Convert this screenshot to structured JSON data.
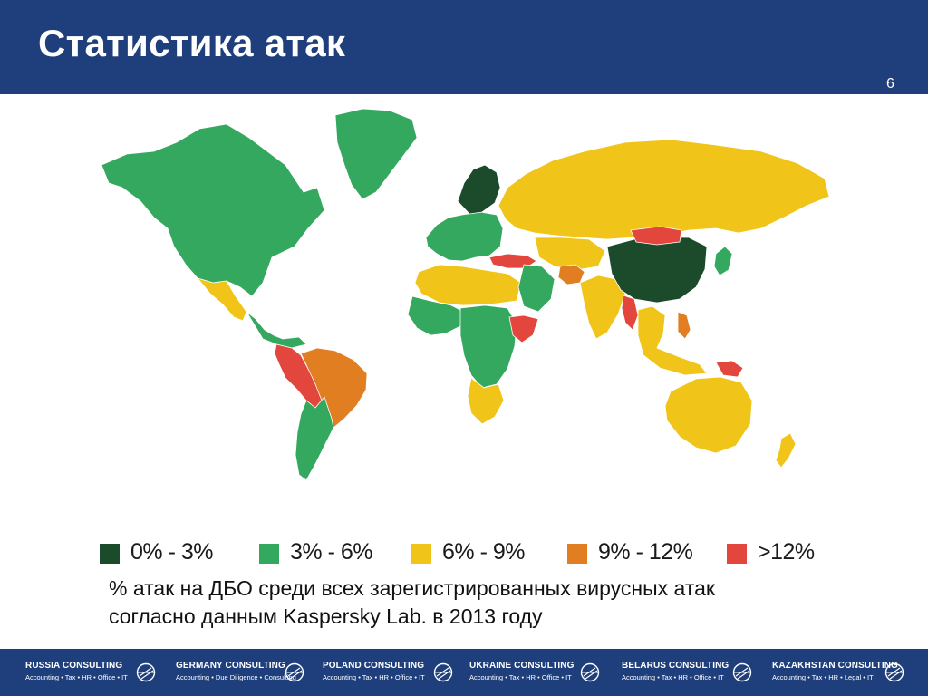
{
  "header": {
    "title": "Статистика атак",
    "slide_number": "6"
  },
  "map": {
    "level_colors": [
      "#1c4b2c",
      "#35a85f",
      "#f0c419",
      "#e27e22",
      "#e2463c"
    ],
    "ocean_color": "#ffffff",
    "regions": [
      {
        "name": "North America (Canada, USA)",
        "level": 1
      },
      {
        "name": "Greenland",
        "level": 1
      },
      {
        "name": "Mexico",
        "level": 2
      },
      {
        "name": "Central America & Caribbean",
        "level": 1
      },
      {
        "name": "Colombia, Peru, Bolivia",
        "level": 4
      },
      {
        "name": "Brazil",
        "level": 3
      },
      {
        "name": "Argentina, Chile",
        "level": 1
      },
      {
        "name": "Western Europe",
        "level": 1
      },
      {
        "name": "Scandinavia",
        "level": 0
      },
      {
        "name": "Russia",
        "level": 2
      },
      {
        "name": "Turkey",
        "level": 4
      },
      {
        "name": "North Africa",
        "level": 2
      },
      {
        "name": "West Africa",
        "level": 1
      },
      {
        "name": "Central Africa",
        "level": 1
      },
      {
        "name": "Horn of Africa",
        "level": 4
      },
      {
        "name": "Southern Africa",
        "level": 2
      },
      {
        "name": "Middle East",
        "level": 1
      },
      {
        "name": "Central Asia",
        "level": 2
      },
      {
        "name": "Afghanistan",
        "level": 3
      },
      {
        "name": "India",
        "level": 2
      },
      {
        "name": "China",
        "level": 0
      },
      {
        "name": "Mongolia",
        "level": 4
      },
      {
        "name": "Myanmar",
        "level": 4
      },
      {
        "name": "Southeast Asia",
        "level": 2
      },
      {
        "name": "Philippines",
        "level": 3
      },
      {
        "name": "Papua New Guinea",
        "level": 4
      },
      {
        "name": "Japan",
        "level": 1
      },
      {
        "name": "Australia",
        "level": 2
      },
      {
        "name": "New Zealand",
        "level": 2
      }
    ]
  },
  "legend": {
    "items": [
      {
        "label": "0% - 3%",
        "color": "#1c4b2c"
      },
      {
        "label": "3% - 6%",
        "color": "#35a85f"
      },
      {
        "label": "6% - 9%",
        "color": "#f0c419"
      },
      {
        "label": "9% - 12%",
        "color": "#e27e22"
      },
      {
        "label": ">12%",
        "color": "#e2463c"
      }
    ]
  },
  "caption": {
    "line1": "% атак на ДБО среди всех зарегистрированных вирусных атак",
    "line2": "согласно данным Kaspersky Lab. в 2013 году"
  },
  "footer": {
    "brands": [
      {
        "name": "RUSSIA CONSULTING",
        "sub": "Accounting • Tax • HR • Office • IT",
        "logo": "globe-icon"
      },
      {
        "name": "GERMANY CONSULTING",
        "sub": "Accounting • Due Diligence • Consulting",
        "logo": "globe-icon"
      },
      {
        "name": "POLAND CONSULTING",
        "sub": "Accounting • Tax • HR • Office • IT",
        "logo": "globe-icon"
      },
      {
        "name": "UKRAINE CONSULTING",
        "sub": "Accounting • Tax • HR • Office • IT",
        "logo": "globe-icon"
      },
      {
        "name": "BELARUS CONSULTING",
        "sub": "Accounting • Tax • HR • Office • IT",
        "logo": "globe-icon"
      },
      {
        "name": "KAZAKHSTAN CONSULTING",
        "sub": "Accounting • Tax • HR • Legal • IT",
        "logo": "globe-icon"
      }
    ]
  }
}
